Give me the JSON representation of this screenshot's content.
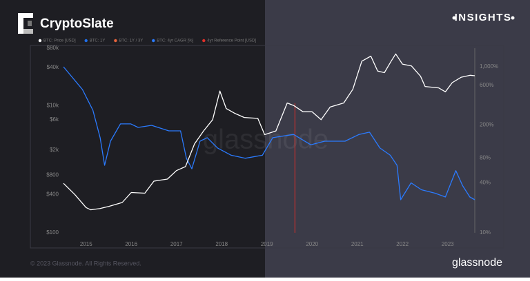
{
  "brand": "CryptoSlate",
  "badge": "INSIGHTS",
  "footer": "© 2023 Glassnode. All Rights Reserved.",
  "logo": "glassnode",
  "watermark": "glassnode",
  "chart_data": {
    "type": "line",
    "log_scale": true,
    "legend": [
      {
        "name": "BTC: Price [USD]",
        "color": "#ffffff"
      },
      {
        "name": "BTC: 1Y",
        "color": "#1f6feb"
      },
      {
        "name": "BTC: 1Y / 3Y",
        "color": "#e8643c"
      },
      {
        "name": "BTC: 4yr CAGR [%]",
        "color": "#2b7bff"
      },
      {
        "name": "4yr Reference Point [USD]",
        "color": "#e0302a"
      }
    ],
    "xlim": [
      2014.5,
      2023.6
    ],
    "xticks": [
      2015,
      2016,
      2017,
      2018,
      2019,
      2020,
      2021,
      2022,
      2023
    ],
    "ylim": [
      100,
      80000
    ],
    "yticks": [
      {
        "value": 100,
        "label": "$100"
      },
      {
        "value": 400,
        "label": "$400"
      },
      {
        "value": 800,
        "label": "$800"
      },
      {
        "value": 2000,
        "label": "$2k"
      },
      {
        "value": 6000,
        "label": "$6k"
      },
      {
        "value": 10000,
        "label": "$10k"
      },
      {
        "value": 40000,
        "label": "$40k"
      },
      {
        "value": 80000,
        "label": "$80k"
      }
    ],
    "y2lim": [
      10,
      1675
    ],
    "y2ticks": [
      {
        "value": 10,
        "label": "10%"
      },
      {
        "value": 40,
        "label": "40%"
      },
      {
        "value": 80,
        "label": "80%"
      },
      {
        "value": 200,
        "label": "200%"
      },
      {
        "value": 600,
        "label": "600%"
      },
      {
        "value": 1000,
        "label": "1,000%"
      }
    ],
    "series": [
      {
        "name": "BTC: Price [USD]",
        "color": "#ffffff",
        "x": [
          2014.5,
          2014.75,
          2015.0,
          2015.1,
          2015.3,
          2015.5,
          2015.8,
          2016.0,
          2016.3,
          2016.5,
          2016.8,
          2017.0,
          2017.2,
          2017.4,
          2017.6,
          2017.8,
          2017.96,
          2018.1,
          2018.3,
          2018.5,
          2018.8,
          2018.95,
          2019.2,
          2019.45,
          2019.6,
          2019.8,
          2020.0,
          2020.2,
          2020.4,
          2020.7,
          2020.9,
          2021.0,
          2021.1,
          2021.3,
          2021.45,
          2021.6,
          2021.75,
          2021.85,
          2022.0,
          2022.2,
          2022.4,
          2022.5,
          2022.8,
          2022.95,
          2023.1,
          2023.3,
          2023.5,
          2023.6
        ],
        "values": [
          600,
          400,
          250,
          230,
          240,
          260,
          300,
          430,
          420,
          650,
          700,
          950,
          1100,
          2500,
          4000,
          6000,
          17000,
          9000,
          7500,
          6500,
          6300,
          3500,
          4000,
          11000,
          10000,
          8000,
          8000,
          6000,
          9500,
          11000,
          18000,
          30000,
          50000,
          60000,
          35000,
          33000,
          50000,
          65000,
          45000,
          42000,
          29000,
          20000,
          19000,
          16500,
          23000,
          28000,
          30000,
          29500
        ]
      },
      {
        "name": "BTC: 4yr CAGR [%]",
        "color": "#2b7bff",
        "axis": "y2",
        "x": [
          2014.5,
          2014.92,
          2015.15,
          2015.31,
          2015.41,
          2015.54,
          2015.76,
          2015.99,
          2016.15,
          2016.45,
          2016.83,
          2017.09,
          2017.22,
          2017.34,
          2017.52,
          2017.68,
          2017.91,
          2018.21,
          2018.52,
          2018.9,
          2019.13,
          2019.59,
          2019.97,
          2020.28,
          2020.73,
          2021.04,
          2021.27,
          2021.5,
          2021.73,
          2021.88,
          2021.96,
          2022.19,
          2022.42,
          2022.72,
          2022.95,
          2023.18,
          2023.33,
          2023.49,
          2023.6
        ],
        "values": [
          1000,
          532,
          300,
          140,
          65,
          127,
          205,
          205,
          186,
          197,
          169,
          169,
          79,
          59,
          127,
          140,
          105,
          86,
          79,
          86,
          140,
          153,
          115,
          127,
          127,
          153,
          163,
          105,
          86,
          65,
          25,
          40,
          33,
          30,
          27,
          56,
          37,
          27,
          25
        ]
      }
    ],
    "reference_point": {
      "name": "4yr Reference Point [USD]",
      "color": "#e0302a",
      "x": 2019.62,
      "value": 10900
    }
  }
}
